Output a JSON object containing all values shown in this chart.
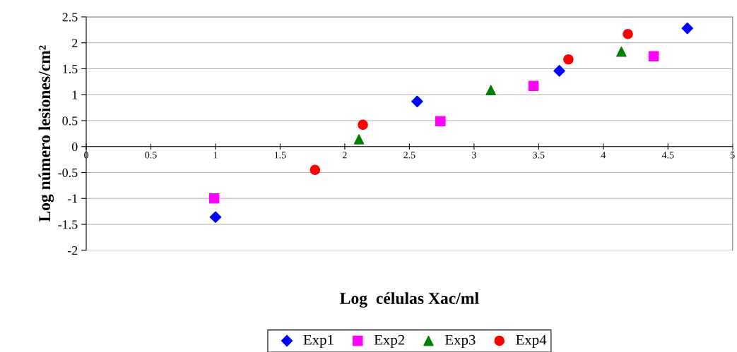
{
  "chart_data": {
    "type": "scatter",
    "xlabel": "Log  células Xac/ml",
    "ylabel": "Log número lesiones/cm²",
    "xlim": [
      0,
      5
    ],
    "ylim": [
      -2,
      2.5
    ],
    "xticks": [
      0,
      0.5,
      1,
      1.5,
      2,
      2.5,
      3,
      3.5,
      4,
      4.5,
      5
    ],
    "yticks": [
      -2,
      -1.5,
      -1,
      -0.5,
      0,
      0.5,
      1,
      1.5,
      2,
      2.5
    ],
    "grid": "y",
    "legend": "bottom",
    "series": [
      {
        "name": "Exp1",
        "color": "#0000ff",
        "marker": "diamond",
        "x": [
          1.0,
          2.56,
          3.66,
          4.65
        ],
        "values": [
          -1.36,
          0.87,
          1.46,
          2.28
        ]
      },
      {
        "name": "Exp2",
        "color": "#ff00ff",
        "marker": "square",
        "x": [
          0.99,
          2.74,
          3.46,
          4.39
        ],
        "values": [
          -1.0,
          0.49,
          1.17,
          1.74
        ]
      },
      {
        "name": "Exp3",
        "color": "#008000",
        "marker": "triangle",
        "x": [
          2.11,
          3.13,
          4.14
        ],
        "values": [
          0.14,
          1.09,
          1.83
        ]
      },
      {
        "name": "Exp4",
        "color": "#ff0000",
        "marker": "circle",
        "x": [
          1.77,
          2.14,
          3.73,
          4.19
        ],
        "values": [
          -0.45,
          0.42,
          1.68,
          2.17
        ]
      }
    ]
  }
}
